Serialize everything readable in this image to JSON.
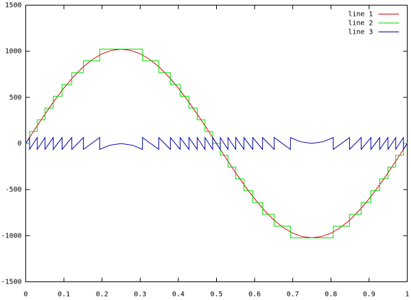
{
  "chart_data": {
    "type": "line",
    "xlim": [
      0,
      1
    ],
    "xticks": [
      0,
      0.1,
      0.2,
      0.3,
      0.4,
      0.5,
      0.6,
      0.7,
      0.8,
      0.9,
      1
    ],
    "ylim": [
      -1500,
      1500
    ],
    "yticks": [
      -1500,
      -1000,
      -500,
      0,
      500,
      1000,
      1500
    ],
    "legend": "top-right",
    "series": [
      {
        "name": "line 1",
        "color": "#cc0000",
        "x": [
          0,
          0.025,
          0.05,
          0.075,
          0.1,
          0.125,
          0.15,
          0.175,
          0.2,
          0.225,
          0.25,
          0.275,
          0.3,
          0.325,
          0.35,
          0.375,
          0.4,
          0.425,
          0.45,
          0.475,
          0.5,
          0.525,
          0.55,
          0.575,
          0.6,
          0.625,
          0.65,
          0.675,
          0.7,
          0.725,
          0.75,
          0.775,
          0.8,
          0.825,
          0.85,
          0.875,
          0.9,
          0.925,
          0.95,
          0.975,
          1
        ],
        "values": [
          0,
          160,
          316,
          464,
          601,
          723,
          828,
          912,
          973,
          1010,
          1023,
          1010,
          973,
          912,
          828,
          723,
          601,
          464,
          316,
          160,
          0,
          -160,
          -316,
          -464,
          -601,
          -723,
          -828,
          -912,
          -973,
          -1010,
          -1023,
          -1010,
          -973,
          -912,
          -828,
          -723,
          -601,
          -464,
          -316,
          -160,
          0
        ]
      },
      {
        "name": "line 2",
        "color": "#00dd00",
        "x": [
          0,
          0.00997,
          0.00997,
          0.0301,
          0.0301,
          0.0506,
          0.0506,
          0.0721,
          0.0721,
          0.0952,
          0.0952,
          0.1208,
          0.1208,
          0.1512,
          0.1512,
          0.1939,
          0.1939,
          0.3061,
          0.3061,
          0.3488,
          0.3488,
          0.3792,
          0.3792,
          0.4048,
          0.4048,
          0.4279,
          0.4279,
          0.4494,
          0.4494,
          0.4699,
          0.4699,
          0.49,
          0.49,
          0.51,
          0.51,
          0.5301,
          0.5301,
          0.5506,
          0.5506,
          0.5721,
          0.5721,
          0.5952,
          0.5952,
          0.6208,
          0.6208,
          0.6512,
          0.6512,
          0.6939,
          0.6939,
          0.8061,
          0.8061,
          0.8488,
          0.8488,
          0.8792,
          0.8792,
          0.9048,
          0.9048,
          0.9279,
          0.9279,
          0.9494,
          0.9494,
          0.9699,
          0.9699,
          0.99,
          0.99,
          1
        ],
        "values": [
          0,
          0,
          128,
          128,
          256,
          256,
          384,
          384,
          512,
          512,
          640,
          640,
          768,
          768,
          896,
          896,
          1024,
          1024,
          896,
          896,
          768,
          768,
          640,
          640,
          512,
          512,
          384,
          384,
          256,
          256,
          128,
          128,
          0,
          0,
          -128,
          -128,
          -256,
          -256,
          -384,
          -384,
          -512,
          -512,
          -640,
          -640,
          -768,
          -768,
          -896,
          -896,
          -1024,
          -1024,
          -896,
          -896,
          -768,
          -768,
          -640,
          -640,
          -512,
          -512,
          -384,
          -384,
          -256,
          -256,
          -128,
          -128,
          0,
          0
        ]
      },
      {
        "name": "line 3",
        "color": "#0000a0",
        "x": [
          0,
          0.00997,
          0.00997,
          0.0301,
          0.0301,
          0.0506,
          0.0506,
          0.0721,
          0.0721,
          0.0952,
          0.0952,
          0.1208,
          0.1208,
          0.1512,
          0.1512,
          0.1939,
          0.1939,
          0.22,
          0.25,
          0.28,
          0.3061,
          0.3061,
          0.3488,
          0.3488,
          0.3792,
          0.3792,
          0.4048,
          0.4048,
          0.4279,
          0.4279,
          0.4494,
          0.4494,
          0.4699,
          0.4699,
          0.49,
          0.49,
          0.5,
          0.51,
          0.51,
          0.5301,
          0.5301,
          0.5506,
          0.5506,
          0.5721,
          0.5721,
          0.5952,
          0.5952,
          0.6208,
          0.6208,
          0.6512,
          0.6512,
          0.6939,
          0.6939,
          0.72,
          0.75,
          0.78,
          0.8061,
          0.8061,
          0.8488,
          0.8488,
          0.8792,
          0.8792,
          0.9048,
          0.9048,
          0.9279,
          0.9279,
          0.9494,
          0.9494,
          0.9699,
          0.9699,
          0.99,
          0.99,
          1
        ],
        "values": [
          0,
          64,
          -64,
          64,
          -64,
          64,
          -64,
          64,
          -64,
          64,
          -64,
          64,
          -64,
          64,
          -64,
          64,
          -64,
          -19,
          -1,
          -19,
          -64,
          64,
          -64,
          64,
          -64,
          64,
          -64,
          64,
          -64,
          64,
          -64,
          64,
          -64,
          64,
          -64,
          64,
          0,
          -64,
          64,
          -64,
          64,
          -64,
          64,
          -64,
          64,
          -64,
          64,
          -64,
          64,
          -64,
          64,
          -64,
          64,
          19,
          1,
          19,
          64,
          -64,
          64,
          -64,
          64,
          -64,
          64,
          -64,
          64,
          -64,
          64,
          -64,
          64,
          -64,
          64,
          -64,
          0
        ]
      }
    ]
  }
}
